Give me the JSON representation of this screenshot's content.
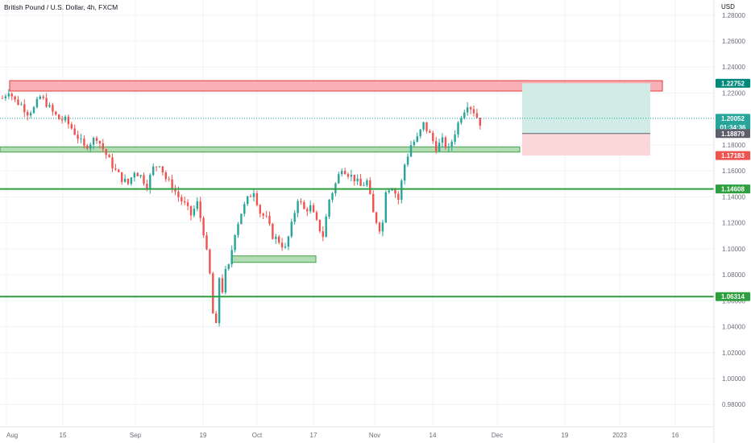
{
  "symbol_title": "British Pound / U.S. Dollar, 4h, FXCM",
  "currency": "USD",
  "colors": {
    "up": "#26a69a",
    "down": "#ef5350",
    "grid": "#f0f3fa",
    "resistance_zone_fill": "#f7a1a8",
    "resistance_zone_stroke": "#e53935",
    "support_zone_fill": "#a5d6a7",
    "support_zone_stroke": "#43a047",
    "support_line": "#2e9f3e",
    "target_zone": "#d1ece7",
    "stop_zone": "#fbd7da"
  },
  "chart_data": {
    "type": "candlestick",
    "y_ticks": [
      "1.28000",
      "1.26000",
      "1.24000",
      "1.22000",
      "1.20000",
      "1.18000",
      "1.16000",
      "1.14000",
      "1.12000",
      "1.10000",
      "1.08000",
      "1.06000",
      "1.04000",
      "1.02000",
      "1.00000",
      "0.98000"
    ],
    "x_ticks": [
      "Aug",
      "15",
      "Sep",
      "19",
      "Oct",
      "17",
      "Nov",
      "14",
      "Dec",
      "19",
      "2023",
      "16"
    ],
    "ylim": [
      0.965,
      1.29
    ],
    "price_badges": [
      {
        "label": "1.22752",
        "value": 1.22752,
        "color": "#00897b",
        "text_color": "#ffffff"
      },
      {
        "label": "1.20052",
        "sub": "01:34:36",
        "value": 1.20052,
        "color": "#26a69a",
        "text_color": "#ffffff"
      },
      {
        "label": "1.18879",
        "value": 1.18879,
        "color": "#5d606b",
        "text_color": "#ffffff"
      },
      {
        "label": "1.17183",
        "value": 1.17183,
        "color": "#ef5350",
        "text_color": "#ffffff"
      },
      {
        "label": "1.14608",
        "value": 1.14608,
        "color": "#2e9f3e",
        "text_color": "#ffffff"
      },
      {
        "label": "1.06314",
        "value": 1.06314,
        "color": "#2e9f3e",
        "text_color": "#ffffff"
      }
    ],
    "horizontal_lines": [
      {
        "value": 1.14608
      },
      {
        "value": 1.06314
      }
    ],
    "zones": [
      {
        "kind": "resistance",
        "from_x": "Aug",
        "to_x": "late Dec",
        "low": 1.2215,
        "high": 1.2295
      },
      {
        "kind": "support",
        "from_x": "Aug",
        "to_x": "early Dec",
        "low": 1.1745,
        "high": 1.1785
      },
      {
        "kind": "support",
        "from_x": "late Sep",
        "to_x": "mid Oct",
        "low": 1.0895,
        "high": 1.0945
      }
    ],
    "position": {
      "entry": 1.18879,
      "target": 1.22752,
      "stop": 1.17183
    },
    "price_path": [
      [
        0,
        1.216
      ],
      [
        2,
        1.222
      ],
      [
        4,
        1.214
      ],
      [
        6,
        1.211
      ],
      [
        8,
        1.205
      ],
      [
        10,
        1.208
      ],
      [
        12,
        1.217
      ],
      [
        14,
        1.212
      ],
      [
        16,
        1.205
      ],
      [
        18,
        1.2
      ],
      [
        20,
        1.199
      ],
      [
        22,
        1.193
      ],
      [
        24,
        1.186
      ],
      [
        26,
        1.178
      ],
      [
        28,
        1.182
      ],
      [
        30,
        1.186
      ],
      [
        32,
        1.177
      ],
      [
        34,
        1.168
      ],
      [
        36,
        1.16
      ],
      [
        38,
        1.154
      ],
      [
        40,
        1.15
      ],
      [
        42,
        1.16
      ],
      [
        44,
        1.156
      ],
      [
        46,
        1.149
      ],
      [
        48,
        1.162
      ],
      [
        50,
        1.166
      ],
      [
        52,
        1.154
      ],
      [
        54,
        1.148
      ],
      [
        56,
        1.14
      ],
      [
        58,
        1.134
      ],
      [
        60,
        1.126
      ],
      [
        62,
        1.135
      ],
      [
        64,
        1.113
      ],
      [
        66,
        1.08
      ],
      [
        67,
        1.05
      ],
      [
        68,
        1.04
      ],
      [
        69,
        1.078
      ],
      [
        70,
        1.068
      ],
      [
        71,
        1.082
      ],
      [
        72,
        1.086
      ],
      [
        74,
        1.113
      ],
      [
        76,
        1.128
      ],
      [
        78,
        1.138
      ],
      [
        80,
        1.145
      ],
      [
        82,
        1.128
      ],
      [
        84,
        1.123
      ],
      [
        86,
        1.11
      ],
      [
        88,
        1.106
      ],
      [
        90,
        1.1
      ],
      [
        92,
        1.118
      ],
      [
        94,
        1.139
      ],
      [
        96,
        1.13
      ],
      [
        98,
        1.132
      ],
      [
        100,
        1.12
      ],
      [
        102,
        1.11
      ],
      [
        104,
        1.138
      ],
      [
        106,
        1.15
      ],
      [
        108,
        1.163
      ],
      [
        110,
        1.158
      ],
      [
        112,
        1.154
      ],
      [
        114,
        1.148
      ],
      [
        116,
        1.152
      ],
      [
        118,
        1.127
      ],
      [
        120,
        1.116
      ],
      [
        121,
        1.12
      ],
      [
        122,
        1.146
      ],
      [
        124,
        1.148
      ],
      [
        126,
        1.138
      ],
      [
        128,
        1.165
      ],
      [
        130,
        1.18
      ],
      [
        132,
        1.185
      ],
      [
        134,
        1.196
      ],
      [
        136,
        1.188
      ],
      [
        138,
        1.178
      ],
      [
        140,
        1.183
      ],
      [
        142,
        1.176
      ],
      [
        144,
        1.19
      ],
      [
        146,
        1.203
      ],
      [
        148,
        1.212
      ],
      [
        150,
        1.206
      ],
      [
        152,
        1.197
      ]
    ]
  }
}
